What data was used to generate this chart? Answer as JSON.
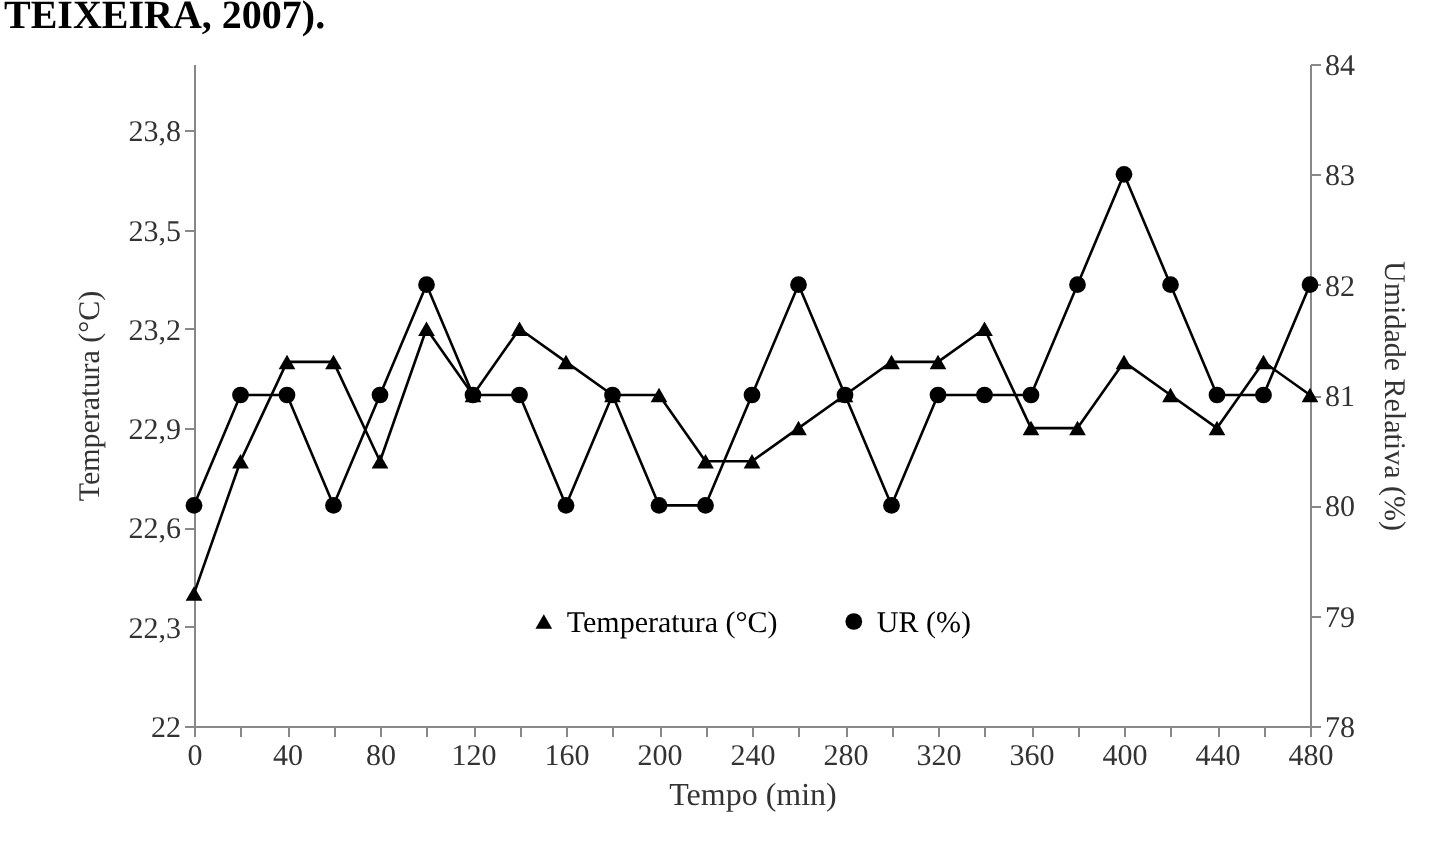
{
  "chart_data": {
    "type": "line",
    "annotations": [
      "TEIXEIRA, 2007)."
    ],
    "xlabel": "Tempo (min)",
    "ylabel": "Temperatura (°C)",
    "y2label": "Umidade Relativa (%)",
    "x": [
      0,
      20,
      40,
      60,
      80,
      100,
      120,
      140,
      160,
      180,
      200,
      220,
      240,
      260,
      280,
      300,
      320,
      340,
      360,
      380,
      400,
      420,
      440,
      460,
      480
    ],
    "xlim": [
      0,
      480
    ],
    "xticks": [
      0,
      {
        "value": 20,
        "label": null
      },
      40,
      {
        "value": 60,
        "label": null
      },
      80,
      {
        "value": 100,
        "label": null
      },
      120,
      {
        "value": 140,
        "label": null
      },
      160,
      {
        "value": 180,
        "label": null
      },
      200,
      {
        "value": 220,
        "label": null
      },
      240,
      {
        "value": 260,
        "label": null
      },
      280,
      {
        "value": 300,
        "label": null
      },
      320,
      {
        "value": 340,
        "label": null
      },
      360,
      {
        "value": 380,
        "label": null
      },
      400,
      {
        "value": 420,
        "label": null
      },
      440,
      {
        "value": 460,
        "label": null
      },
      480
    ],
    "ylim": [
      22,
      24
    ],
    "yticks": [
      {
        "value": 22,
        "label": "22"
      },
      {
        "value": 22.3,
        "label": "22,3"
      },
      {
        "value": 22.6,
        "label": "22,6"
      },
      {
        "value": 22.9,
        "label": "22,9"
      },
      {
        "value": 23.2,
        "label": "23,2"
      },
      {
        "value": 23.5,
        "label": "23,5"
      },
      {
        "value": 23.8,
        "label": "23,8"
      }
    ],
    "y2lim": [
      78,
      84
    ],
    "y2ticks": [
      78,
      79,
      80,
      81,
      82,
      83,
      84
    ],
    "grid": false,
    "legend": "bottom",
    "line_style": "solid",
    "series": [
      {
        "name": "Temperatura (°C)",
        "color": "#000000",
        "marker": "triangle",
        "values": [
          22.4,
          22.8,
          23.1,
          23.1,
          22.8,
          23.2,
          23.0,
          23.2,
          23.1,
          23.0,
          23.0,
          22.8,
          22.8,
          22.9,
          23.0,
          23.1,
          23.1,
          23.2,
          22.9,
          22.9,
          23.1,
          23.0,
          22.9,
          23.1,
          23.0
        ]
      },
      {
        "name": "UR (%)",
        "color": "#000000",
        "marker": "circle",
        "axis": "y2",
        "values": [
          80,
          81,
          81,
          80,
          81,
          82,
          81,
          81,
          80,
          81,
          80,
          80,
          81,
          82,
          81,
          80,
          81,
          81,
          81,
          82,
          83,
          82,
          81,
          81,
          82
        ]
      }
    ]
  }
}
